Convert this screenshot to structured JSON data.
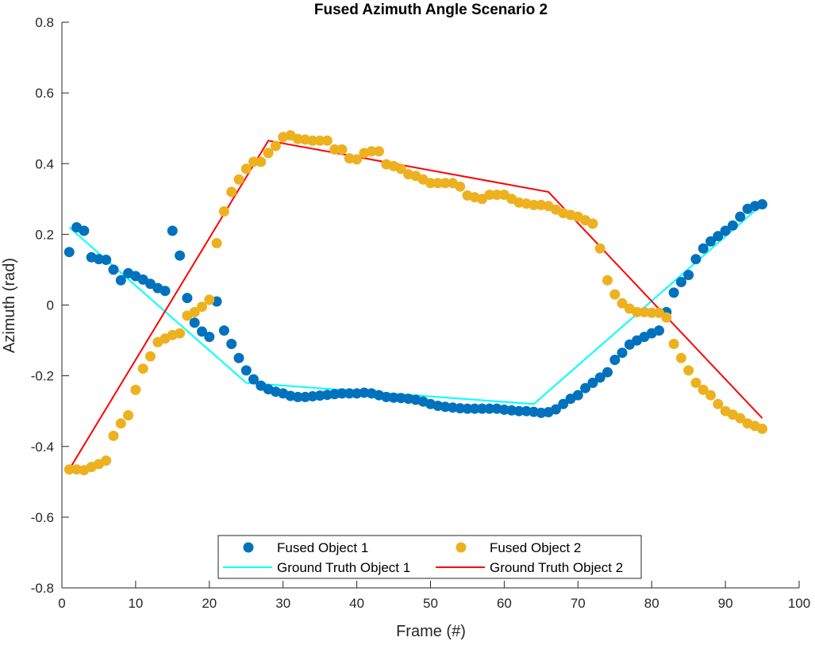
{
  "chart_data": {
    "type": "scatter",
    "title": "Fused Azimuth Angle Scenario 2",
    "xlabel": "Frame (#)",
    "ylabel": "Azimuth (rad)",
    "xlim": [
      0,
      100
    ],
    "ylim": [
      -0.8,
      0.8
    ],
    "xticks": [
      0,
      10,
      20,
      30,
      40,
      50,
      60,
      70,
      80,
      90,
      100
    ],
    "yticks": [
      -0.8,
      -0.6,
      -0.4,
      -0.2,
      0,
      0.2,
      0.4,
      0.6,
      0.8
    ],
    "xtick_labels": [
      "0",
      "10",
      "20",
      "30",
      "40",
      "50",
      "60",
      "70",
      "80",
      "90",
      "100"
    ],
    "ytick_labels": [
      "-0.8",
      "-0.6",
      "-0.4",
      "-0.2",
      "0",
      "0.2",
      "0.4",
      "0.6",
      "0.8"
    ],
    "grid": false,
    "legend_position": "bottom-center",
    "series": [
      {
        "name": "Fused Object 1",
        "kind": "scatter",
        "color": "#0072bd",
        "x": [
          1,
          2,
          3,
          4,
          5,
          6,
          7,
          8,
          9,
          10,
          11,
          12,
          13,
          14,
          15,
          16,
          17,
          18,
          19,
          20,
          21,
          22,
          23,
          24,
          25,
          26,
          27,
          28,
          29,
          30,
          31,
          32,
          33,
          34,
          35,
          36,
          37,
          38,
          39,
          40,
          41,
          42,
          43,
          44,
          45,
          46,
          47,
          48,
          49,
          50,
          51,
          52,
          53,
          54,
          55,
          56,
          57,
          58,
          59,
          60,
          61,
          62,
          63,
          64,
          65,
          66,
          67,
          68,
          69,
          70,
          71,
          72,
          73,
          74,
          75,
          76,
          77,
          78,
          79,
          80,
          81,
          82,
          83,
          84,
          85,
          86,
          87,
          88,
          89,
          90,
          91,
          92,
          93,
          94,
          95
        ],
        "y": [
          0.15,
          0.22,
          0.21,
          0.135,
          0.13,
          0.128,
          0.1,
          0.07,
          0.09,
          0.082,
          0.072,
          0.06,
          0.048,
          0.04,
          0.21,
          0.14,
          0.02,
          -0.05,
          -0.075,
          -0.09,
          0.01,
          -0.072,
          -0.11,
          -0.15,
          -0.185,
          -0.21,
          -0.228,
          -0.238,
          -0.245,
          -0.25,
          -0.257,
          -0.26,
          -0.26,
          -0.258,
          -0.256,
          -0.254,
          -0.252,
          -0.25,
          -0.25,
          -0.25,
          -0.248,
          -0.25,
          -0.255,
          -0.26,
          -0.262,
          -0.263,
          -0.265,
          -0.268,
          -0.273,
          -0.28,
          -0.285,
          -0.288,
          -0.29,
          -0.292,
          -0.293,
          -0.293,
          -0.293,
          -0.293,
          -0.293,
          -0.296,
          -0.298,
          -0.3,
          -0.3,
          -0.302,
          -0.305,
          -0.303,
          -0.295,
          -0.28,
          -0.265,
          -0.255,
          -0.235,
          -0.22,
          -0.205,
          -0.19,
          -0.155,
          -0.135,
          -0.112,
          -0.1,
          -0.09,
          -0.08,
          -0.072,
          -0.02,
          0.035,
          0.065,
          0.085,
          0.13,
          0.16,
          0.18,
          0.195,
          0.21,
          0.225,
          0.25,
          0.272,
          0.28,
          0.285
        ]
      },
      {
        "name": "Fused Object 2",
        "kind": "scatter",
        "color": "#edb120",
        "x": [
          1,
          2,
          3,
          4,
          5,
          6,
          7,
          8,
          9,
          10,
          11,
          12,
          13,
          14,
          15,
          16,
          17,
          18,
          19,
          20,
          21,
          22,
          23,
          24,
          25,
          26,
          27,
          28,
          29,
          30,
          31,
          32,
          33,
          34,
          35,
          36,
          37,
          38,
          39,
          40,
          41,
          42,
          43,
          44,
          45,
          46,
          47,
          48,
          49,
          50,
          51,
          52,
          53,
          54,
          55,
          56,
          57,
          58,
          59,
          60,
          61,
          62,
          63,
          64,
          65,
          66,
          67,
          68,
          69,
          70,
          71,
          72,
          73,
          74,
          75,
          76,
          77,
          78,
          79,
          80,
          81,
          82,
          83,
          84,
          85,
          86,
          87,
          88,
          89,
          90,
          91,
          92,
          93,
          94,
          95
        ],
        "y": [
          -0.465,
          -0.465,
          -0.467,
          -0.458,
          -0.45,
          -0.44,
          -0.37,
          -0.335,
          -0.312,
          -0.24,
          -0.18,
          -0.145,
          -0.105,
          -0.095,
          -0.085,
          -0.08,
          -0.03,
          -0.02,
          -0.005,
          0.015,
          0.175,
          0.265,
          0.32,
          0.355,
          0.385,
          0.405,
          0.405,
          0.43,
          0.45,
          0.475,
          0.48,
          0.47,
          0.468,
          0.465,
          0.465,
          0.465,
          0.44,
          0.44,
          0.415,
          0.412,
          0.43,
          0.435,
          0.435,
          0.398,
          0.393,
          0.385,
          0.37,
          0.365,
          0.355,
          0.345,
          0.345,
          0.345,
          0.345,
          0.335,
          0.31,
          0.305,
          0.3,
          0.312,
          0.312,
          0.312,
          0.3,
          0.29,
          0.287,
          0.283,
          0.283,
          0.28,
          0.27,
          0.26,
          0.255,
          0.25,
          0.24,
          0.23,
          0.16,
          0.07,
          0.03,
          0.005,
          -0.01,
          -0.02,
          -0.02,
          -0.022,
          -0.022,
          -0.035,
          -0.11,
          -0.15,
          -0.185,
          -0.22,
          -0.24,
          -0.255,
          -0.28,
          -0.3,
          -0.31,
          -0.32,
          -0.335,
          -0.342,
          -0.35
        ]
      },
      {
        "name": "Ground Truth Object 1",
        "kind": "line",
        "color": "#00ffff",
        "x": [
          1,
          25,
          64,
          95
        ],
        "y": [
          0.22,
          -0.22,
          -0.28,
          0.285
        ]
      },
      {
        "name": "Ground Truth Object 2",
        "kind": "line",
        "color": "#ff0000",
        "x": [
          1,
          28,
          66,
          95
        ],
        "y": [
          -0.465,
          0.465,
          0.32,
          -0.32
        ]
      }
    ]
  }
}
